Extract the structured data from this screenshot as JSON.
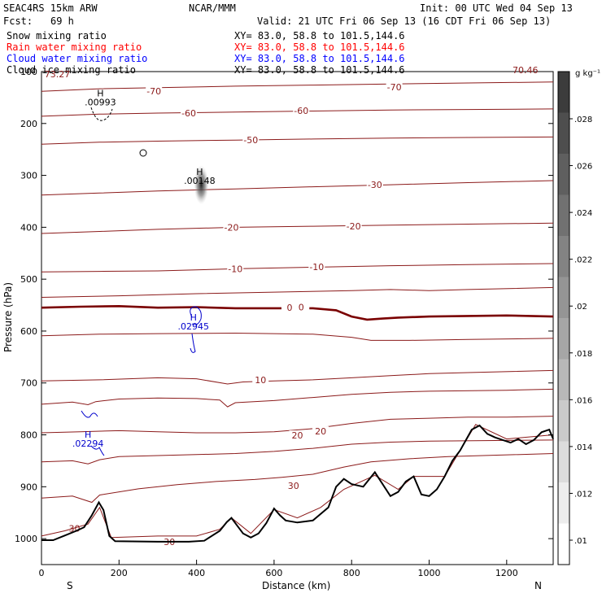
{
  "header": {
    "model": "SEAC4RS 15km ARW",
    "org": "NCAR/MMM",
    "init": "Init: 00 UTC Wed 04 Sep 13",
    "fcst_label": "Fcst:",
    "fcst_value": "69 h",
    "valid": "Valid: 21 UTC Fri 06 Sep 13 (16 CDT Fri 06 Sep 13)"
  },
  "fields": [
    {
      "name": "Snow mixing ratio",
      "xy": "XY=  83.0, 58.8 to 101.5,144.6",
      "color": "#000000"
    },
    {
      "name": "Rain water mixing ratio",
      "xy": "XY=  83.0, 58.8 to 101.5,144.6",
      "color": "#ff0000"
    },
    {
      "name": "Cloud water mixing ratio",
      "xy": "XY=  83.0, 58.8 to 101.5,144.6",
      "color": "#0000ff"
    },
    {
      "name": "Cloud ice mixing ratio",
      "xy": "XY=  83.0, 58.8 to 101.5,144.6",
      "color": "#000000"
    }
  ],
  "colors": {
    "temperature_contour": "#8b1a1a",
    "freezing_level": "#7a0000",
    "cloud_water": "#0000cc",
    "terrain": "#000000"
  },
  "chart_data": {
    "type": "cross-section contour",
    "xlabel": "Distance (km)",
    "ylabel": "Pressure (hPa)",
    "x_ticks": [
      0,
      200,
      400,
      600,
      800,
      1000,
      1200
    ],
    "y_ticks": [
      200,
      300,
      400,
      500,
      600,
      700,
      800,
      900,
      1000
    ],
    "y_top_label": "100",
    "xlim": [
      0,
      1320
    ],
    "ylim": [
      1050,
      100
    ],
    "end_labels": {
      "left": "S",
      "right": "N"
    },
    "colorbar": {
      "unit": "g kg⁻¹",
      "ticks": [
        ".01",
        ".012",
        ".014",
        ".016",
        ".018",
        ".02",
        ".022",
        ".024",
        ".026",
        ".028"
      ],
      "levels": [
        0.009,
        0.03
      ]
    },
    "temperature_contours": [
      {
        "t": -70,
        "labels": [
          {
            "x": 290,
            "y": 138
          },
          {
            "x": 910,
            "y": 130
          }
        ],
        "pts": [
          [
            0,
            138
          ],
          [
            150,
            133
          ],
          [
            300,
            131
          ],
          [
            500,
            128
          ],
          [
            700,
            126
          ],
          [
            900,
            124
          ],
          [
            1100,
            122
          ],
          [
            1320,
            120
          ]
        ]
      },
      {
        "t": -60,
        "labels": [
          {
            "x": 380,
            "y": 180
          },
          {
            "x": 670,
            "y": 175
          }
        ],
        "pts": [
          [
            0,
            186
          ],
          [
            150,
            182
          ],
          [
            300,
            180
          ],
          [
            500,
            178
          ],
          [
            700,
            176
          ],
          [
            900,
            174
          ],
          [
            1100,
            173
          ],
          [
            1320,
            172
          ]
        ]
      },
      {
        "t": -50,
        "labels": [
          {
            "x": 540,
            "y": 232
          }
        ],
        "pts": [
          [
            0,
            240
          ],
          [
            150,
            236
          ],
          [
            300,
            234
          ],
          [
            500,
            232
          ],
          [
            700,
            230
          ],
          [
            900,
            228
          ],
          [
            1100,
            227
          ],
          [
            1320,
            226
          ]
        ]
      },
      {
        "t": -30,
        "labels": [
          {
            "x": 860,
            "y": 318
          }
        ],
        "pts": [
          [
            0,
            338
          ],
          [
            150,
            334
          ],
          [
            300,
            330
          ],
          [
            500,
            326
          ],
          [
            700,
            322
          ],
          [
            900,
            318
          ],
          [
            1100,
            314
          ],
          [
            1320,
            310
          ]
        ]
      },
      {
        "t": -20,
        "labels": [
          {
            "x": 490,
            "y": 400
          },
          {
            "x": 805,
            "y": 398
          }
        ],
        "pts": [
          [
            0,
            412
          ],
          [
            150,
            408
          ],
          [
            300,
            404
          ],
          [
            500,
            400
          ],
          [
            700,
            398
          ],
          [
            900,
            396
          ],
          [
            1100,
            394
          ],
          [
            1320,
            392
          ]
        ]
      },
      {
        "t": -10,
        "labels": [
          {
            "x": 500,
            "y": 480
          },
          {
            "x": 710,
            "y": 476
          }
        ],
        "pts": [
          [
            0,
            486
          ],
          [
            150,
            485
          ],
          [
            300,
            484
          ],
          [
            500,
            480
          ],
          [
            700,
            477
          ],
          [
            900,
            474
          ],
          [
            1100,
            472
          ],
          [
            1320,
            470
          ]
        ]
      },
      {
        "t": -5,
        "labels": [],
        "pts": [
          [
            0,
            535
          ],
          [
            200,
            532
          ],
          [
            400,
            528
          ],
          [
            600,
            525
          ],
          [
            800,
            522
          ],
          [
            900,
            520
          ],
          [
            1000,
            522
          ],
          [
            1100,
            520
          ],
          [
            1320,
            516
          ]
        ]
      },
      {
        "t": 0,
        "labels": [
          {
            "x": 640,
            "y": 555
          },
          {
            "x": 670,
            "y": 554
          }
        ],
        "pts": [
          [
            0,
            555
          ],
          [
            100,
            553
          ],
          [
            200,
            552
          ],
          [
            300,
            555
          ],
          [
            400,
            554
          ],
          [
            500,
            556
          ],
          [
            600,
            556
          ],
          [
            700,
            556
          ],
          [
            760,
            560
          ],
          [
            800,
            572
          ],
          [
            840,
            578
          ],
          [
            880,
            576
          ],
          [
            920,
            574
          ],
          [
            1000,
            572
          ],
          [
            1100,
            571
          ],
          [
            1200,
            570
          ],
          [
            1320,
            572
          ]
        ]
      },
      {
        "t": 5,
        "labels": [],
        "pts": [
          [
            0,
            609
          ],
          [
            150,
            606
          ],
          [
            300,
            605
          ],
          [
            500,
            604
          ],
          [
            700,
            606
          ],
          [
            800,
            612
          ],
          [
            850,
            618
          ],
          [
            950,
            618
          ],
          [
            1100,
            616
          ],
          [
            1320,
            614
          ]
        ]
      },
      {
        "t": 10,
        "labels": [
          {
            "x": 565,
            "y": 694
          }
        ],
        "pts": [
          [
            0,
            696
          ],
          [
            150,
            694
          ],
          [
            300,
            690
          ],
          [
            400,
            692
          ],
          [
            480,
            702
          ],
          [
            520,
            698
          ],
          [
            600,
            696
          ],
          [
            700,
            694
          ],
          [
            800,
            690
          ],
          [
            900,
            686
          ],
          [
            1000,
            682
          ],
          [
            1100,
            680
          ],
          [
            1320,
            676
          ]
        ]
      },
      {
        "t": 15,
        "labels": [],
        "pts": [
          [
            0,
            741
          ],
          [
            80,
            737
          ],
          [
            120,
            742
          ],
          [
            140,
            736
          ],
          [
            200,
            731
          ],
          [
            300,
            729
          ],
          [
            400,
            730
          ],
          [
            460,
            733
          ],
          [
            480,
            746
          ],
          [
            500,
            738
          ],
          [
            600,
            734
          ],
          [
            700,
            728
          ],
          [
            800,
            722
          ],
          [
            900,
            718
          ],
          [
            1000,
            716
          ],
          [
            1200,
            714
          ],
          [
            1320,
            712
          ]
        ]
      },
      {
        "t": 20,
        "labels": [
          {
            "x": 660,
            "y": 801
          },
          {
            "x": 720,
            "y": 793
          }
        ],
        "pts": [
          [
            0,
            796
          ],
          [
            100,
            794
          ],
          [
            200,
            792
          ],
          [
            300,
            794
          ],
          [
            400,
            796
          ],
          [
            500,
            796
          ],
          [
            600,
            794
          ],
          [
            700,
            788
          ],
          [
            800,
            778
          ],
          [
            900,
            770
          ],
          [
            1000,
            768
          ],
          [
            1100,
            766
          ],
          [
            1200,
            766
          ],
          [
            1320,
            764
          ]
        ]
      },
      {
        "t": 25,
        "labels": [],
        "pts": [
          [
            0,
            852
          ],
          [
            80,
            850
          ],
          [
            120,
            856
          ],
          [
            150,
            848
          ],
          [
            200,
            842
          ],
          [
            300,
            840
          ],
          [
            400,
            838
          ],
          [
            500,
            836
          ],
          [
            600,
            832
          ],
          [
            700,
            826
          ],
          [
            800,
            818
          ],
          [
            900,
            814
          ],
          [
            1000,
            812
          ],
          [
            1320,
            810
          ]
        ]
      },
      {
        "t": 30,
        "labels": [
          {
            "x": 650,
            "y": 898
          },
          {
            "x": 85,
            "y": 980
          },
          {
            "x": 330,
            "y": 1006
          }
        ],
        "pts": [
          [
            0,
            922
          ],
          [
            80,
            918
          ],
          [
            130,
            930
          ],
          [
            150,
            916
          ],
          [
            250,
            904
          ],
          [
            350,
            896
          ],
          [
            450,
            890
          ],
          [
            550,
            886
          ],
          [
            620,
            882
          ],
          [
            700,
            876
          ],
          [
            780,
            862
          ],
          [
            850,
            852
          ],
          [
            950,
            846
          ],
          [
            1050,
            842
          ],
          [
            1320,
            836
          ]
        ]
      }
    ],
    "terrain": [
      [
        0,
        1003
      ],
      [
        30,
        1003
      ],
      [
        60,
        994
      ],
      [
        90,
        985
      ],
      [
        110,
        978
      ],
      [
        130,
        955
      ],
      [
        148,
        930
      ],
      [
        160,
        945
      ],
      [
        175,
        995
      ],
      [
        190,
        1005
      ],
      [
        300,
        1006
      ],
      [
        380,
        1006
      ],
      [
        420,
        1004
      ],
      [
        460,
        985
      ],
      [
        478,
        968
      ],
      [
        490,
        960
      ],
      [
        505,
        975
      ],
      [
        520,
        990
      ],
      [
        540,
        998
      ],
      [
        560,
        990
      ],
      [
        580,
        970
      ],
      [
        600,
        942
      ],
      [
        615,
        955
      ],
      [
        630,
        965
      ],
      [
        660,
        969
      ],
      [
        700,
        965
      ],
      [
        740,
        940
      ],
      [
        760,
        900
      ],
      [
        780,
        885
      ],
      [
        800,
        895
      ],
      [
        830,
        900
      ],
      [
        860,
        872
      ],
      [
        880,
        895
      ],
      [
        900,
        918
      ],
      [
        920,
        910
      ],
      [
        940,
        890
      ],
      [
        960,
        880
      ],
      [
        980,
        915
      ],
      [
        1000,
        918
      ],
      [
        1020,
        905
      ],
      [
        1040,
        880
      ],
      [
        1060,
        850
      ],
      [
        1080,
        830
      ],
      [
        1110,
        790
      ],
      [
        1130,
        782
      ],
      [
        1150,
        798
      ],
      [
        1170,
        805
      ],
      [
        1190,
        810
      ],
      [
        1210,
        815
      ],
      [
        1230,
        808
      ],
      [
        1250,
        818
      ],
      [
        1270,
        810
      ],
      [
        1290,
        795
      ],
      [
        1310,
        790
      ],
      [
        1320,
        808
      ]
    ],
    "terrain_temp_line": [
      [
        0,
        995
      ],
      [
        60,
        985
      ],
      [
        120,
        972
      ],
      [
        150,
        940
      ],
      [
        180,
        998
      ],
      [
        300,
        995
      ],
      [
        400,
        995
      ],
      [
        460,
        982
      ],
      [
        490,
        960
      ],
      [
        540,
        990
      ],
      [
        600,
        944
      ],
      [
        660,
        960
      ],
      [
        720,
        940
      ],
      [
        780,
        905
      ],
      [
        860,
        878
      ],
      [
        920,
        905
      ],
      [
        960,
        880
      ],
      [
        1040,
        880
      ],
      [
        1120,
        780
      ],
      [
        1200,
        808
      ],
      [
        1320,
        800
      ]
    ],
    "annotations": [
      {
        "kind": "H",
        "value": ".00993",
        "color": "#000000",
        "x": 152,
        "y": 160
      },
      {
        "kind": "H",
        "value": ".00148",
        "color": "#000000",
        "x": 408,
        "y": 312
      },
      {
        "kind": "H",
        "value": ".02945",
        "color": "#0000cc",
        "x": 392,
        "y": 592
      },
      {
        "kind": "H",
        "value": ".02294",
        "color": "#0000cc",
        "x": 120,
        "y": 818
      }
    ],
    "corner_labels": [
      {
        "text": "73.27",
        "x": 8,
        "y": 111
      },
      {
        "text": "70.46",
        "x": 1215,
        "y": 103
      }
    ]
  }
}
